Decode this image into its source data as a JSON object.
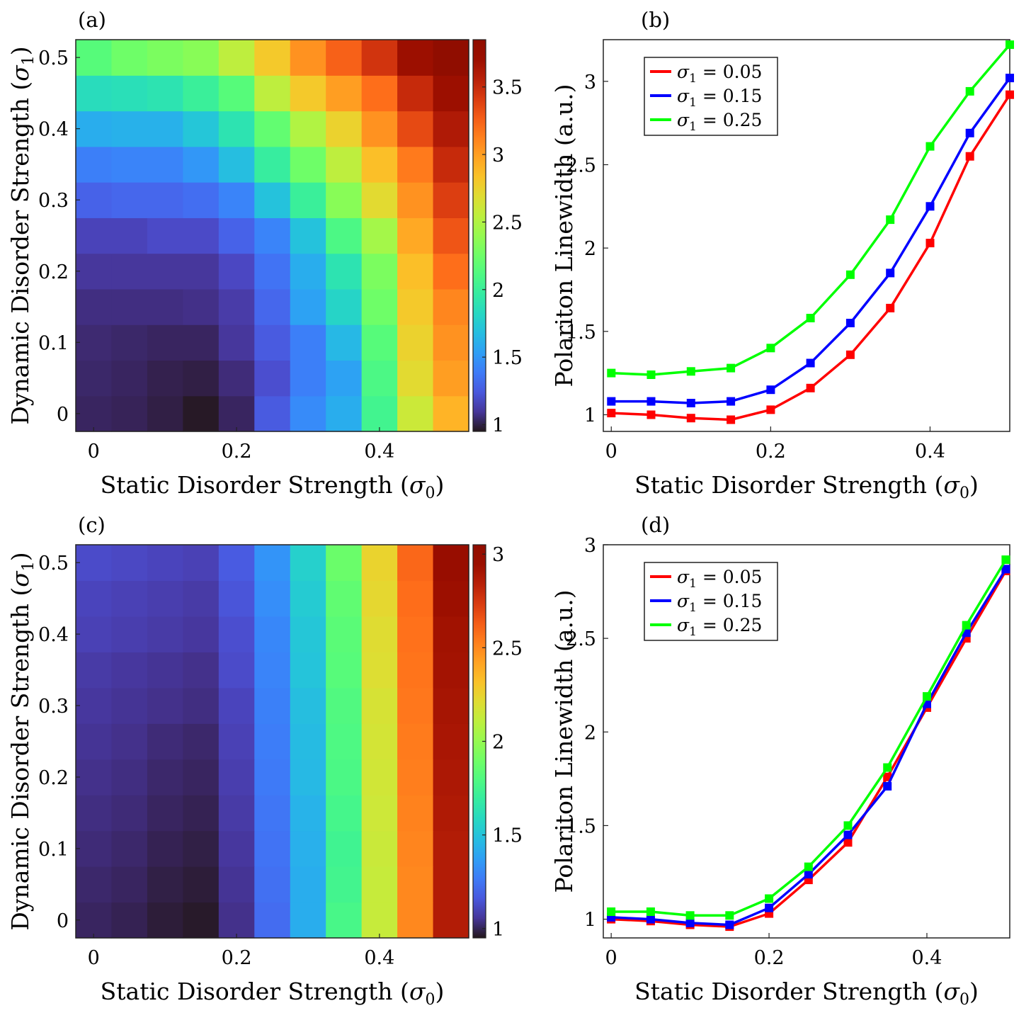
{
  "colors": {
    "red": "#ff0000",
    "blue": "#0000ff",
    "green": "#00ff00",
    "colormap": "turbo"
  },
  "chart_data": [
    {
      "panel": "(a)",
      "type": "heatmap",
      "xlabel": "Static Disorder Strength (σ0)",
      "ylabel": "Dynamic Disorder Strength (σ1)",
      "x": [
        0,
        0.05,
        0.1,
        0.15,
        0.2,
        0.25,
        0.3,
        0.35,
        0.4,
        0.45,
        0.5
      ],
      "y": [
        0,
        0.05,
        0.1,
        0.15,
        0.2,
        0.25,
        0.3,
        0.35,
        0.4,
        0.45,
        0.5
      ],
      "xticks": [
        "0",
        "0.2",
        "0.4"
      ],
      "yticks": [
        "0",
        "0.1",
        "0.2",
        "0.3",
        "0.4",
        "0.5"
      ],
      "colorbar": {
        "min": 0.95,
        "max": 3.85,
        "ticks": [
          "1",
          "1.5",
          "2",
          "2.5",
          "3",
          "3.5"
        ],
        "tick_values": [
          1,
          1.5,
          2,
          2.5,
          3,
          3.5
        ]
      },
      "values": [
        [
          1.02,
          1.01,
          0.99,
          0.96,
          1.02,
          1.25,
          1.45,
          1.6,
          2.05,
          2.6,
          2.9
        ],
        [
          1.03,
          1.02,
          1.0,
          0.99,
          1.05,
          1.2,
          1.4,
          1.55,
          2.1,
          2.7,
          3.0
        ],
        [
          1.04,
          1.03,
          1.02,
          1.02,
          1.1,
          1.25,
          1.4,
          1.65,
          2.15,
          2.75,
          3.05
        ],
        [
          1.06,
          1.06,
          1.06,
          1.07,
          1.12,
          1.3,
          1.55,
          1.8,
          2.25,
          2.8,
          3.1
        ],
        [
          1.1,
          1.1,
          1.1,
          1.1,
          1.17,
          1.35,
          1.6,
          1.9,
          2.3,
          2.85,
          3.2
        ],
        [
          1.15,
          1.15,
          1.18,
          1.18,
          1.28,
          1.42,
          1.7,
          2.1,
          2.45,
          2.95,
          3.3
        ],
        [
          1.28,
          1.3,
          1.3,
          1.33,
          1.42,
          1.7,
          2.0,
          2.35,
          2.7,
          3.05,
          3.4
        ],
        [
          1.4,
          1.42,
          1.42,
          1.5,
          1.68,
          1.98,
          2.25,
          2.55,
          2.85,
          3.15,
          3.5
        ],
        [
          1.6,
          1.62,
          1.62,
          1.72,
          1.9,
          2.2,
          2.5,
          2.75,
          3.05,
          3.35,
          3.6
        ],
        [
          1.85,
          1.87,
          1.9,
          2.0,
          2.15,
          2.55,
          2.8,
          3.0,
          3.2,
          3.5,
          3.7
        ],
        [
          2.15,
          2.25,
          2.3,
          2.35,
          2.55,
          2.8,
          3.05,
          3.25,
          3.45,
          3.7,
          3.85
        ]
      ]
    },
    {
      "panel": "(b)",
      "type": "line",
      "xlabel": "Static Disorder Strength (σ0)",
      "ylabel": "Polariton Linewidth (a.u.)",
      "xlim": [
        -0.01,
        0.5
      ],
      "ylim": [
        0.9,
        3.25
      ],
      "xticks": [
        "0",
        "0.2",
        "0.4"
      ],
      "xtick_values": [
        0,
        0.2,
        0.4
      ],
      "yticks": [
        "1",
        "1.5",
        "2",
        "2.5",
        "3"
      ],
      "ytick_values": [
        1,
        1.5,
        2,
        2.5,
        3
      ],
      "x": [
        0,
        0.05,
        0.1,
        0.15,
        0.2,
        0.25,
        0.3,
        0.35,
        0.4,
        0.45,
        0.5
      ],
      "series": [
        {
          "legend_prefix": "σ",
          "legend_sub": "1",
          "legend_rest": " = 0.05",
          "color": "#ff0000",
          "values": [
            1.01,
            1.0,
            0.98,
            0.97,
            1.03,
            1.16,
            1.36,
            1.64,
            2.03,
            2.55,
            2.92
          ]
        },
        {
          "legend_prefix": "σ",
          "legend_sub": "1",
          "legend_rest": " = 0.15",
          "color": "#0000ff",
          "values": [
            1.08,
            1.08,
            1.07,
            1.08,
            1.15,
            1.31,
            1.55,
            1.85,
            2.25,
            2.69,
            3.02
          ]
        },
        {
          "legend_prefix": "σ",
          "legend_sub": "1",
          "legend_rest": " = 0.25",
          "color": "#00ff00",
          "values": [
            1.25,
            1.24,
            1.26,
            1.28,
            1.4,
            1.58,
            1.84,
            2.17,
            2.61,
            2.94,
            3.22
          ]
        }
      ],
      "legend_position": "top-left"
    },
    {
      "panel": "(c)",
      "type": "heatmap",
      "xlabel": "Static Disorder Strength (σ0)",
      "ylabel": "Dynamic Disorder Strength (σ1)",
      "x": [
        0,
        0.05,
        0.1,
        0.15,
        0.2,
        0.25,
        0.3,
        0.35,
        0.4,
        0.45,
        0.5
      ],
      "y": [
        0,
        0.05,
        0.1,
        0.15,
        0.2,
        0.25,
        0.3,
        0.35,
        0.4,
        0.45,
        0.5
      ],
      "xticks": [
        "0",
        "0.2",
        "0.4"
      ],
      "yticks": [
        "0",
        "0.1",
        "0.2",
        "0.3",
        "0.4",
        "0.5"
      ],
      "colorbar": {
        "min": 0.95,
        "max": 3.05,
        "ticks": [
          "1",
          "1.5",
          "2",
          "2.5",
          "3"
        ],
        "tick_values": [
          1,
          1.5,
          2,
          2.5,
          3
        ]
      },
      "values": [
        [
          1.0,
          0.99,
          0.97,
          0.96,
          1.04,
          1.22,
          1.42,
          1.77,
          2.13,
          2.5,
          2.86
        ],
        [
          1.01,
          1.0,
          0.98,
          0.97,
          1.05,
          1.23,
          1.42,
          1.75,
          2.13,
          2.5,
          2.86
        ],
        [
          1.02,
          1.01,
          0.99,
          0.98,
          1.06,
          1.24,
          1.43,
          1.74,
          2.14,
          2.51,
          2.86
        ],
        [
          1.03,
          1.02,
          1.0,
          0.99,
          1.07,
          1.25,
          1.44,
          1.76,
          2.15,
          2.52,
          2.87
        ],
        [
          1.04,
          1.03,
          1.01,
          1.0,
          1.08,
          1.26,
          1.46,
          1.78,
          2.16,
          2.53,
          2.88
        ],
        [
          1.05,
          1.04,
          1.02,
          1.01,
          1.09,
          1.27,
          1.47,
          1.79,
          2.17,
          2.54,
          2.89
        ],
        [
          1.06,
          1.05,
          1.04,
          1.03,
          1.1,
          1.28,
          1.48,
          1.8,
          2.18,
          2.55,
          2.9
        ],
        [
          1.07,
          1.06,
          1.05,
          1.04,
          1.12,
          1.29,
          1.5,
          1.82,
          2.2,
          2.56,
          2.91
        ],
        [
          1.09,
          1.08,
          1.07,
          1.06,
          1.13,
          1.3,
          1.51,
          1.83,
          2.21,
          2.57,
          2.92
        ],
        [
          1.1,
          1.09,
          1.08,
          1.07,
          1.15,
          1.32,
          1.53,
          1.85,
          2.23,
          2.58,
          2.94
        ],
        [
          1.12,
          1.11,
          1.1,
          1.09,
          1.17,
          1.34,
          1.55,
          1.88,
          2.25,
          2.6,
          2.96
        ]
      ]
    },
    {
      "panel": "(d)",
      "type": "line",
      "xlabel": "Static Disorder Strength (σ0)",
      "ylabel": "Polariton Linewidth (a.u.)",
      "xlim": [
        -0.01,
        0.505
      ],
      "ylim": [
        0.9,
        3.0
      ],
      "xticks": [
        "0",
        "0.2",
        "0.4"
      ],
      "xtick_values": [
        0,
        0.2,
        0.4
      ],
      "yticks": [
        "1",
        "1.5",
        "2",
        "2.5",
        "3"
      ],
      "ytick_values": [
        1,
        1.5,
        2,
        2.5,
        3
      ],
      "x": [
        0,
        0.05,
        0.1,
        0.15,
        0.2,
        0.25,
        0.3,
        0.35,
        0.4,
        0.45,
        0.5
      ],
      "series": [
        {
          "legend_prefix": "σ",
          "legend_sub": "1",
          "legend_rest": " = 0.05",
          "color": "#ff0000",
          "values": [
            1.0,
            0.99,
            0.97,
            0.96,
            1.03,
            1.21,
            1.41,
            1.76,
            2.13,
            2.5,
            2.86
          ]
        },
        {
          "legend_prefix": "σ",
          "legend_sub": "1",
          "legend_rest": " = 0.15",
          "color": "#0000ff",
          "values": [
            1.01,
            1.0,
            0.98,
            0.97,
            1.06,
            1.24,
            1.45,
            1.71,
            2.15,
            2.53,
            2.87
          ]
        },
        {
          "legend_prefix": "σ",
          "legend_sub": "1",
          "legend_rest": " = 0.25",
          "color": "#00ff00",
          "values": [
            1.04,
            1.04,
            1.02,
            1.02,
            1.11,
            1.28,
            1.5,
            1.81,
            2.19,
            2.57,
            2.92
          ]
        }
      ],
      "legend_position": "top-left"
    }
  ]
}
